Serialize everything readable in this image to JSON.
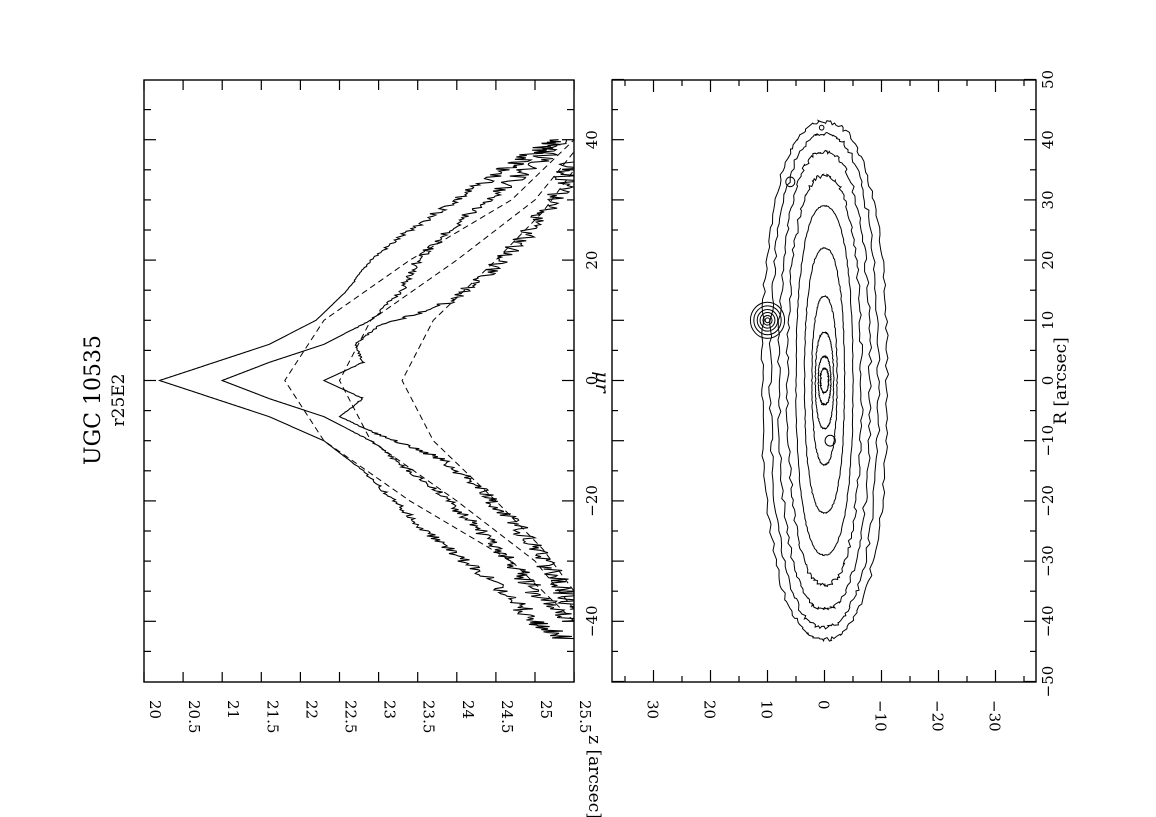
{
  "figure": {
    "title": "UGC 10535",
    "subtitle": "r25E2"
  },
  "chart_data": [
    {
      "type": "line",
      "panel": "profiles",
      "title": "",
      "xlabel": "",
      "ylabel": "μr",
      "orientation": "rotated 90° counter-clockwise on the page",
      "xlim": [
        -50,
        50
      ],
      "ylim": [
        25.5,
        20
      ],
      "y_reversed": true,
      "x_ticks": [
        -40,
        -20,
        0,
        20,
        40
      ],
      "y_ticks": [
        "20",
        "20.5",
        "21",
        "21.5",
        "22",
        "22.5",
        "23",
        "23.5",
        "24",
        "24.5",
        "25",
        "25.5"
      ],
      "grid": false,
      "legend": "none",
      "series": [
        {
          "style": "solid",
          "x": [
            -43,
            -40,
            -35,
            -30,
            -25,
            -20,
            -15,
            -10,
            -6,
            -3,
            0,
            3,
            6,
            10,
            15,
            20,
            25,
            30,
            35,
            38,
            40
          ],
          "y": [
            25.4,
            25.0,
            24.6,
            24.1,
            23.6,
            23.2,
            22.8,
            22.3,
            21.6,
            20.9,
            20.2,
            20.9,
            21.6,
            22.2,
            22.6,
            22.9,
            23.4,
            24.0,
            24.6,
            25.0,
            25.3
          ]
        },
        {
          "style": "solid",
          "x": [
            -40,
            -35,
            -30,
            -25,
            -20,
            -15,
            -10,
            -6,
            -3,
            0,
            3,
            6,
            10,
            15,
            20,
            25,
            30,
            35,
            40
          ],
          "y": [
            25.5,
            25.0,
            24.7,
            24.3,
            23.9,
            23.4,
            22.9,
            22.3,
            21.6,
            21.0,
            21.6,
            22.3,
            22.9,
            23.3,
            23.5,
            23.9,
            24.4,
            24.9,
            25.4
          ]
        },
        {
          "style": "solid",
          "x": [
            -38,
            -33,
            -28,
            -23,
            -18,
            -13,
            -9,
            -6,
            -3,
            0,
            3,
            6,
            9,
            13,
            18,
            23,
            28,
            33,
            38
          ],
          "y": [
            25.5,
            25.3,
            25.0,
            24.7,
            24.3,
            23.8,
            23.0,
            22.5,
            22.8,
            22.3,
            22.8,
            22.7,
            23.0,
            23.9,
            24.4,
            24.8,
            25.1,
            25.4,
            25.5
          ]
        },
        {
          "style": "dashed",
          "x": [
            -40,
            -30,
            -20,
            -10,
            0,
            10,
            20,
            30,
            40
          ],
          "y": [
            25.5,
            24.7,
            23.4,
            22.3,
            21.8,
            22.3,
            23.4,
            24.7,
            25.5
          ]
        },
        {
          "style": "dashed",
          "x": [
            -38,
            -30,
            -20,
            -10,
            0,
            10,
            20,
            30,
            38
          ],
          "y": [
            25.5,
            25.0,
            24.0,
            22.9,
            22.5,
            22.9,
            24.0,
            25.0,
            25.5
          ]
        },
        {
          "style": "dashed",
          "x": [
            -35,
            -28,
            -20,
            -10,
            0,
            10,
            20,
            28,
            35
          ],
          "y": [
            25.5,
            25.1,
            24.5,
            23.7,
            23.3,
            23.7,
            24.5,
            25.1,
            25.5
          ]
        }
      ]
    },
    {
      "type": "contour",
      "panel": "image",
      "title": "",
      "xlabel": "R [arcsec]",
      "ylabel": "z [arcsec]",
      "orientation": "rotated 90° counter-clockwise on the page",
      "xlim": [
        -50,
        50
      ],
      "ylim": [
        -37,
        37
      ],
      "x_ticks": [
        -50,
        -40,
        -30,
        -20,
        -10,
        0,
        10,
        20,
        30,
        40,
        50
      ],
      "y_ticks": [
        -30,
        -20,
        -10,
        0,
        10,
        20,
        30
      ],
      "grid": false,
      "legend": "none",
      "isophotes": [
        {
          "R_half": 43,
          "z_half": 11
        },
        {
          "R_half": 41,
          "z_half": 9.5
        },
        {
          "R_half": 38,
          "z_half": 8
        },
        {
          "R_half": 34,
          "z_half": 6.5
        },
        {
          "R_half": 29,
          "z_half": 5
        },
        {
          "R_half": 22,
          "z_half": 3.5
        },
        {
          "R_half": 14,
          "z_half": 2.2
        },
        {
          "R_half": 8,
          "z_half": 1.6
        },
        {
          "R_half": 4,
          "z_half": 1.1
        },
        {
          "R_half": 2,
          "z_half": 0.7
        }
      ],
      "knots": [
        {
          "R": 10,
          "z": 10,
          "levels": [
            3.0,
            2.4,
            1.8,
            1.3,
            0.8,
            0.4
          ]
        },
        {
          "R": -10,
          "z": -1,
          "levels": [
            0.9
          ]
        },
        {
          "R": 33,
          "z": 6,
          "levels": [
            0.8
          ]
        },
        {
          "R": 42,
          "z": 0.5,
          "levels": [
            0.4
          ]
        }
      ]
    }
  ]
}
